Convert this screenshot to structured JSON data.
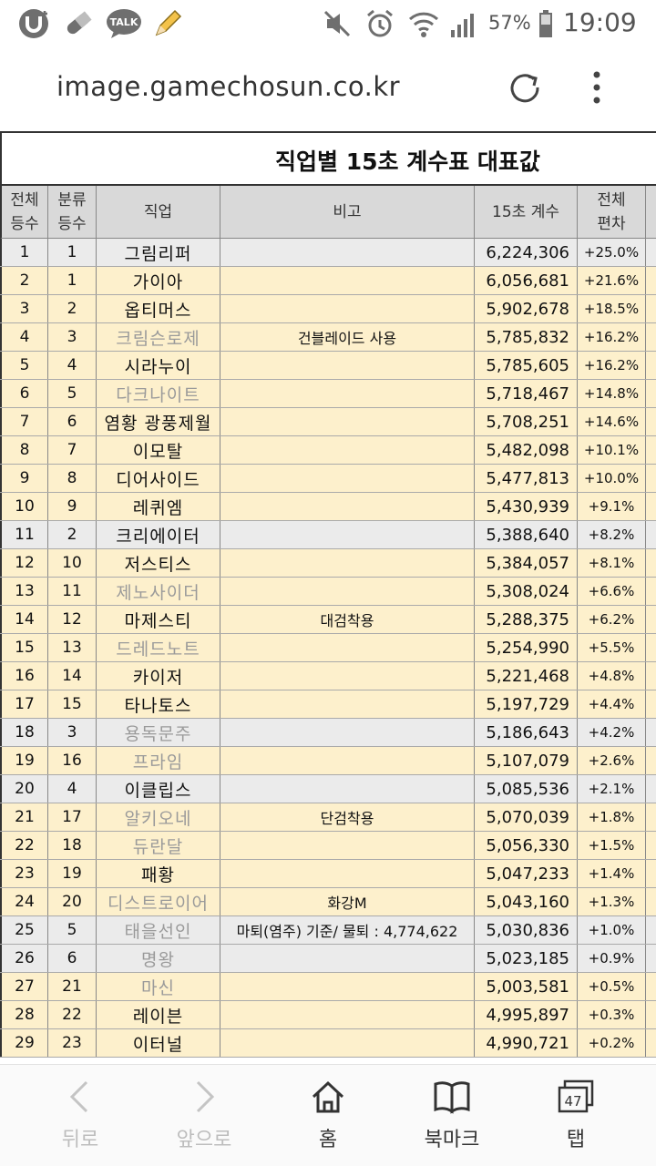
{
  "status_bar": {
    "icons": [
      "u-plus-icon",
      "pill-icon",
      "kakaotalk-icon",
      "pencil-icon",
      "mute-icon",
      "alarm-icon",
      "wifi-icon",
      "signal-icon",
      "battery-icon"
    ],
    "talk_badge": "TALK",
    "battery": "57%",
    "time": "19:09"
  },
  "url_bar": {
    "url": "image.gamechosun.co.kr"
  },
  "table": {
    "title": "직업별 15초 계수표 대표값",
    "headers": {
      "overall_rank": [
        "전체",
        "등수"
      ],
      "category_rank": [
        "분류",
        "등수"
      ],
      "job": "직업",
      "note": "비고",
      "coefficient": "15초 계수",
      "deviation": [
        "전체",
        "편차"
      ]
    },
    "rows": [
      {
        "rank": "1",
        "sub": "1",
        "job": "그림리퍼",
        "note": "",
        "coef": "6,224,306",
        "dev": "+25.0%",
        "bg": "gray",
        "dim": false
      },
      {
        "rank": "2",
        "sub": "1",
        "job": "가이아",
        "note": "",
        "coef": "6,056,681",
        "dev": "+21.6%",
        "bg": "cream",
        "dim": false
      },
      {
        "rank": "3",
        "sub": "2",
        "job": "옵티머스",
        "note": "",
        "coef": "5,902,678",
        "dev": "+18.5%",
        "bg": "cream",
        "dim": false
      },
      {
        "rank": "4",
        "sub": "3",
        "job": "크림슨로제",
        "note": "건블레이드 사용",
        "coef": "5,785,832",
        "dev": "+16.2%",
        "bg": "cream",
        "dim": true
      },
      {
        "rank": "5",
        "sub": "4",
        "job": "시라누이",
        "note": "",
        "coef": "5,785,605",
        "dev": "+16.2%",
        "bg": "cream",
        "dim": false
      },
      {
        "rank": "6",
        "sub": "5",
        "job": "다크나이트",
        "note": "",
        "coef": "5,718,467",
        "dev": "+14.8%",
        "bg": "cream",
        "dim": true
      },
      {
        "rank": "7",
        "sub": "6",
        "job": "염황 광풍제월",
        "note": "",
        "coef": "5,708,251",
        "dev": "+14.6%",
        "bg": "cream",
        "dim": false
      },
      {
        "rank": "8",
        "sub": "7",
        "job": "이모탈",
        "note": "",
        "coef": "5,482,098",
        "dev": "+10.1%",
        "bg": "cream",
        "dim": false
      },
      {
        "rank": "9",
        "sub": "8",
        "job": "디어사이드",
        "note": "",
        "coef": "5,477,813",
        "dev": "+10.0%",
        "bg": "cream",
        "dim": false
      },
      {
        "rank": "10",
        "sub": "9",
        "job": "레퀴엠",
        "note": "",
        "coef": "5,430,939",
        "dev": "+9.1%",
        "bg": "cream",
        "dim": false
      },
      {
        "rank": "11",
        "sub": "2",
        "job": "크리에이터",
        "note": "",
        "coef": "5,388,640",
        "dev": "+8.2%",
        "bg": "gray",
        "dim": false
      },
      {
        "rank": "12",
        "sub": "10",
        "job": "저스티스",
        "note": "",
        "coef": "5,384,057",
        "dev": "+8.1%",
        "bg": "cream",
        "dim": false
      },
      {
        "rank": "13",
        "sub": "11",
        "job": "제노사이더",
        "note": "",
        "coef": "5,308,024",
        "dev": "+6.6%",
        "bg": "cream",
        "dim": true
      },
      {
        "rank": "14",
        "sub": "12",
        "job": "마제스티",
        "note": "대검착용",
        "coef": "5,288,375",
        "dev": "+6.2%",
        "bg": "cream",
        "dim": false
      },
      {
        "rank": "15",
        "sub": "13",
        "job": "드레드노트",
        "note": "",
        "coef": "5,254,990",
        "dev": "+5.5%",
        "bg": "cream",
        "dim": true
      },
      {
        "rank": "16",
        "sub": "14",
        "job": "카이저",
        "note": "",
        "coef": "5,221,468",
        "dev": "+4.8%",
        "bg": "cream",
        "dim": false
      },
      {
        "rank": "17",
        "sub": "15",
        "job": "타나토스",
        "note": "",
        "coef": "5,197,729",
        "dev": "+4.4%",
        "bg": "cream",
        "dim": false
      },
      {
        "rank": "18",
        "sub": "3",
        "job": "용독문주",
        "note": "",
        "coef": "5,186,643",
        "dev": "+4.2%",
        "bg": "gray",
        "dim": true
      },
      {
        "rank": "19",
        "sub": "16",
        "job": "프라임",
        "note": "",
        "coef": "5,107,079",
        "dev": "+2.6%",
        "bg": "cream",
        "dim": true
      },
      {
        "rank": "20",
        "sub": "4",
        "job": "이클립스",
        "note": "",
        "coef": "5,085,536",
        "dev": "+2.1%",
        "bg": "gray",
        "dim": false
      },
      {
        "rank": "21",
        "sub": "17",
        "job": "알키오네",
        "note": "단검착용",
        "coef": "5,070,039",
        "dev": "+1.8%",
        "bg": "cream",
        "dim": true
      },
      {
        "rank": "22",
        "sub": "18",
        "job": "듀란달",
        "note": "",
        "coef": "5,056,330",
        "dev": "+1.5%",
        "bg": "cream",
        "dim": true
      },
      {
        "rank": "23",
        "sub": "19",
        "job": "패황",
        "note": "",
        "coef": "5,047,233",
        "dev": "+1.4%",
        "bg": "cream",
        "dim": false
      },
      {
        "rank": "24",
        "sub": "20",
        "job": "디스트로이어",
        "note": "화강M",
        "coef": "5,043,160",
        "dev": "+1.3%",
        "bg": "cream",
        "dim": true
      },
      {
        "rank": "25",
        "sub": "5",
        "job": "태을선인",
        "note": "마퇴(염주) 기준/ 물퇴 : 4,774,622",
        "coef": "5,030,836",
        "dev": "+1.0%",
        "bg": "gray",
        "dim": true
      },
      {
        "rank": "26",
        "sub": "6",
        "job": "명왕",
        "note": "",
        "coef": "5,023,185",
        "dev": "+0.9%",
        "bg": "gray",
        "dim": true
      },
      {
        "rank": "27",
        "sub": "21",
        "job": "마신",
        "note": "",
        "coef": "5,003,581",
        "dev": "+0.5%",
        "bg": "cream",
        "dim": true
      },
      {
        "rank": "28",
        "sub": "22",
        "job": "레이븐",
        "note": "",
        "coef": "4,995,897",
        "dev": "+0.3%",
        "bg": "cream",
        "dim": false
      },
      {
        "rank": "29",
        "sub": "23",
        "job": "이터널",
        "note": "",
        "coef": "4,990,721",
        "dev": "+0.2%",
        "bg": "cream",
        "dim": false
      }
    ]
  },
  "bottom_nav": {
    "back": "뒤로",
    "forward": "앞으로",
    "home": "홈",
    "bookmarks": "북마크",
    "tabs": "탭",
    "tab_count": "47"
  }
}
